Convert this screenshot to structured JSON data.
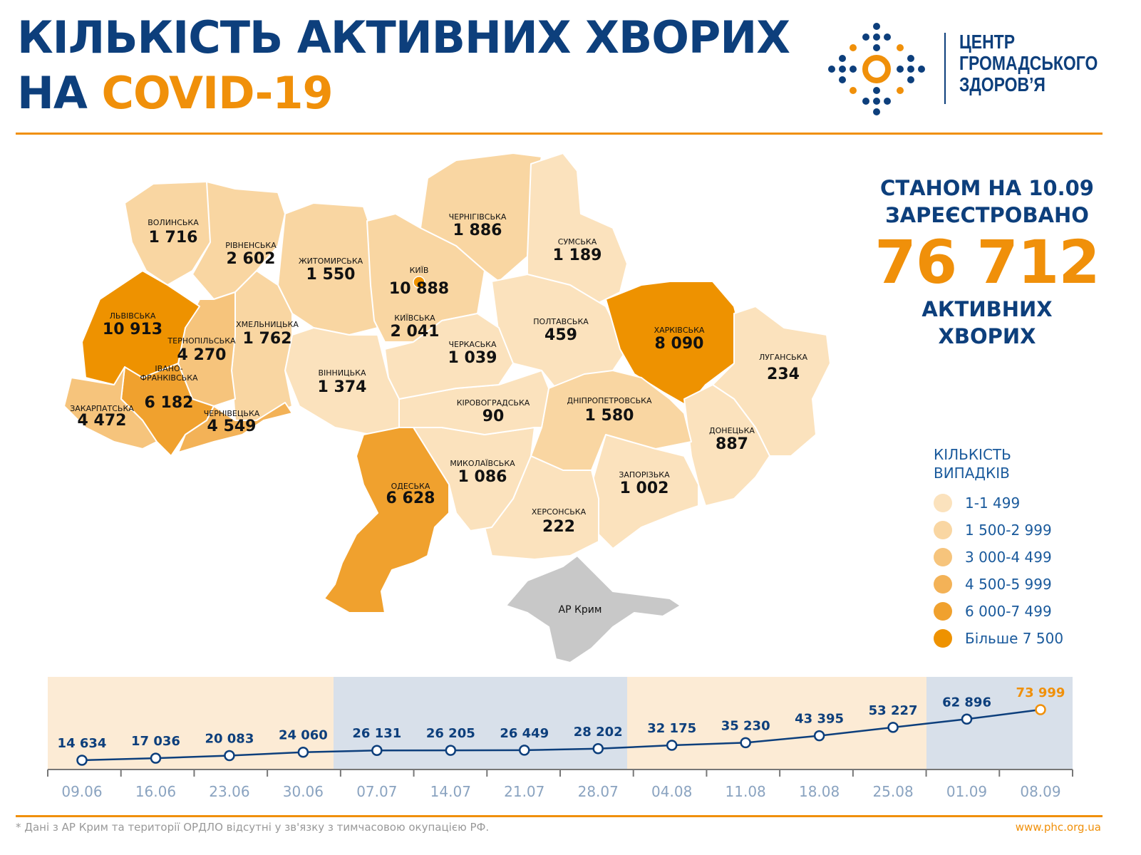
{
  "header": {
    "title_line1": "КІЛЬКІСТЬ АКТИВНИХ ХВОРИХ",
    "title_line2_prefix": "НА",
    "title_line2_highlight": "COVID-19",
    "logo": {
      "line1": "ЦЕНТР",
      "line2": "ГРОМАДСЬКОГО",
      "line3": "ЗДОРОВ’Я"
    }
  },
  "summary": {
    "line1": "СТАНОМ НА 10.09",
    "line2": "ЗАРЕЄСТРОВАНО",
    "total": "76 712",
    "line3": "АКТИВНИХ",
    "line4": "ХВОРИХ"
  },
  "colors": {
    "primary": "#0d3f7c",
    "accent": "#f0900a",
    "crimea": "#c8c8c8",
    "band_beige": "#fcebd5",
    "band_blue": "#d8e0ea"
  },
  "legend": {
    "title_line1": "КІЛЬКІСТЬ",
    "title_line2": "ВИПАДКІВ",
    "items": [
      {
        "label": "1-1 499",
        "color": "#fbe2bd"
      },
      {
        "label": "1 500-2 999",
        "color": "#f9d6a2"
      },
      {
        "label": "3 000-4 499",
        "color": "#f6c47c"
      },
      {
        "label": "4 500-5 999",
        "color": "#f3b257"
      },
      {
        "label": "6 000-7 499",
        "color": "#f0a12e"
      },
      {
        "label": "Більше 7 500",
        "color": "#ee9200"
      }
    ]
  },
  "regions": [
    {
      "id": "volyn",
      "name": "ВОЛИНСЬКА",
      "value": "1 716",
      "level": 1
    },
    {
      "id": "rivne",
      "name": "РІВНЕНСЬКА",
      "value": "2 602",
      "level": 1
    },
    {
      "id": "zhytomyr",
      "name": "ЖИТОМИРСЬКА",
      "value": "1 550",
      "level": 1
    },
    {
      "id": "kyiv_oblast",
      "name": "КИЇВСЬКА",
      "value": "2 041",
      "level": 1
    },
    {
      "id": "chernihiv",
      "name": "ЧЕРНІГІВСЬКА",
      "value": "1 886",
      "level": 1
    },
    {
      "id": "sumy",
      "name": "СУМСЬКА",
      "value": "1 189",
      "level": 0
    },
    {
      "id": "poltava",
      "name": "ПОЛТАВСЬКА",
      "value": "459",
      "level": 0
    },
    {
      "id": "kharkiv",
      "name": "ХАРКІВСЬКА",
      "value": "8 090",
      "level": 5
    },
    {
      "id": "luhansk",
      "name": "ЛУГАНСЬКА",
      "value": "234",
      "level": 0
    },
    {
      "id": "donetsk",
      "name": "ДОНЕЦЬКА",
      "value": "887",
      "level": 0
    },
    {
      "id": "zaporizhzhia",
      "name": "ЗАПОРІЗЬКА",
      "value": "1 002",
      "level": 0
    },
    {
      "id": "dnipro",
      "name": "ДНІПРОПЕТРОВСЬКА",
      "value": "1 580",
      "level": 1
    },
    {
      "id": "kherson",
      "name": "ХЕРСОНСЬКА",
      "value": "222",
      "level": 0
    },
    {
      "id": "mykolaiv",
      "name": "МИКОЛАЇВСЬКА",
      "value": "1 086",
      "level": 0
    },
    {
      "id": "kirovohrad",
      "name": "КІРОВОГРАДСЬКА",
      "value": "90",
      "level": 0
    },
    {
      "id": "cherkasy",
      "name": "ЧЕРКАСЬКА",
      "value": "1 039",
      "level": 0
    },
    {
      "id": "vinnytsia",
      "name": "ВІННИЦЬКА",
      "value": "1 374",
      "level": 0
    },
    {
      "id": "odesa",
      "name": "ОДЕСЬКА",
      "value": "6 628",
      "level": 4
    },
    {
      "id": "khmelnytskyi",
      "name": "ХМЕЛЬНИЦЬКА",
      "value": "1 762",
      "level": 1
    },
    {
      "id": "ternopil",
      "name": "ТЕРНОПІЛЬСЬКА",
      "value": "4 270",
      "level": 2
    },
    {
      "id": "lviv",
      "name": "ЛЬВІВСЬКА",
      "value": "10 913",
      "level": 5
    },
    {
      "id": "ivano_frankivsk",
      "name": "ІВАНО-\nФРАНКІВСЬКА",
      "value": "6 182",
      "level": 4
    },
    {
      "id": "zakarpattia",
      "name": "ЗАКАРПАТСЬКА",
      "value": "4 472",
      "level": 2
    },
    {
      "id": "chernivtsi",
      "name": "ЧЕРНІВЕЦЬКА",
      "value": "4 549",
      "level": 3
    },
    {
      "id": "kyiv_city",
      "name": "КИЇВ",
      "value": "10 888",
      "level": 5
    },
    {
      "id": "crimea",
      "name": "АР Крим",
      "value": null,
      "level": null
    }
  ],
  "chart_data": {
    "type": "line",
    "x": [
      "09.06",
      "16.06",
      "23.06",
      "30.06",
      "07.07",
      "14.07",
      "21.07",
      "28.07",
      "04.08",
      "11.08",
      "18.08",
      "25.08",
      "01.09",
      "08.09"
    ],
    "values": [
      14634,
      17036,
      20083,
      24060,
      26131,
      26205,
      26449,
      28202,
      32175,
      35230,
      43395,
      53227,
      62896,
      73999
    ],
    "value_labels": [
      "14 634",
      "17 036",
      "20 083",
      "24 060",
      "26 131",
      "26 205",
      "26 449",
      "28 202",
      "32 175",
      "35 230",
      "43 395",
      "53 227",
      "62 896",
      "73 999"
    ],
    "highlight_last": true,
    "grid": false
  },
  "footer": {
    "note": "* Дані з АР Крим та території ОРДЛО відсутні у зв'язку з тимчасовою окупацією РФ.",
    "site": "www.phc.org.ua"
  }
}
